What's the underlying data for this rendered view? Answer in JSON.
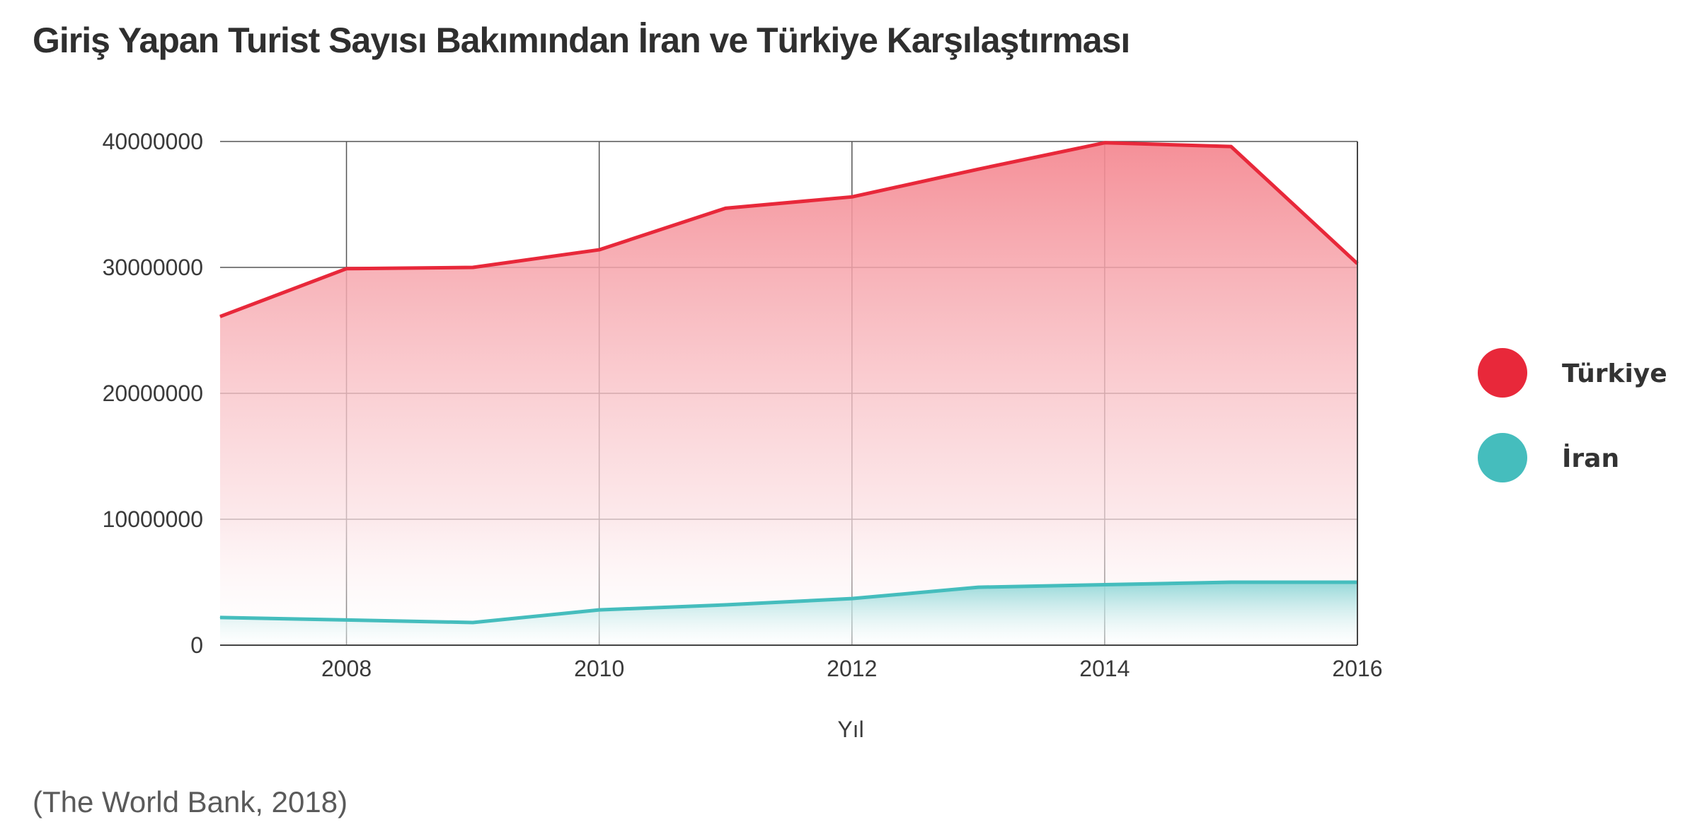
{
  "chart_data": {
    "type": "area",
    "title": "Giriş Yapan Turist Sayısı Bakımından İran ve Türkiye Karşılaştırması",
    "xlabel": "Yıl",
    "ylabel": "",
    "x": [
      2007,
      2008,
      2009,
      2010,
      2011,
      2012,
      2013,
      2014,
      2015,
      2016
    ],
    "xlim": [
      2007,
      2016
    ],
    "xticks": [
      "2008",
      "2010",
      "2012",
      "2014",
      "2016"
    ],
    "ylim": [
      0,
      40000000
    ],
    "yticks": [
      "0",
      "10000000",
      "20000000",
      "30000000",
      "40000000"
    ],
    "grid": true,
    "legend_position": "right",
    "series": [
      {
        "name": "Türkiye",
        "color": "#e8283a",
        "values": [
          26100000,
          29900000,
          30000000,
          31400000,
          34700000,
          35600000,
          37800000,
          39900000,
          39600000,
          30300000
        ]
      },
      {
        "name": "İran",
        "color": "#45bdbd",
        "values": [
          2200000,
          2000000,
          1800000,
          2800000,
          3200000,
          3700000,
          4600000,
          4800000,
          5000000,
          5000000
        ]
      }
    ]
  },
  "source": "(The World Bank, 2018)"
}
